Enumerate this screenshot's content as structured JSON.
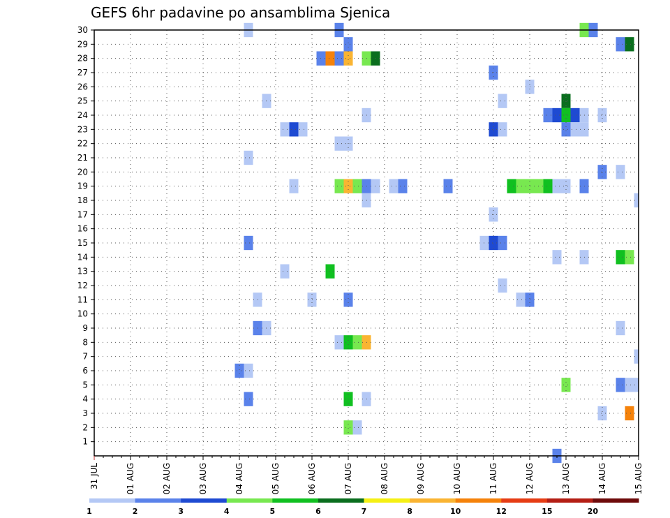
{
  "chart_data": {
    "type": "heatmap",
    "title": "GEFS 6hr padavine po ansamblima Sjenica",
    "xlabel": "",
    "ylabel": "",
    "x_ticks": [
      "31 JUL",
      "01 AUG",
      "02 AUG",
      "03 AUG",
      "04 AUG",
      "05 AUG",
      "06 AUG",
      "07 AUG",
      "08 AUG",
      "09 AUG",
      "10 AUG",
      "11 AUG",
      "12 AUG",
      "13 AUG",
      "14 AUG",
      "15 AUG"
    ],
    "x_range_days": [
      0,
      15
    ],
    "y_ticks": [
      "1",
      "2",
      "3",
      "4",
      "5",
      "6",
      "7",
      "8",
      "9",
      "10",
      "11",
      "12",
      "13",
      "14",
      "15",
      "16",
      "17",
      "18",
      "19",
      "20",
      "21",
      "22",
      "23",
      "24",
      "25",
      "26",
      "27",
      "28",
      "29",
      "30"
    ],
    "y_range": [
      0,
      30
    ],
    "grid": true,
    "colorbar": {
      "labels": [
        "1",
        "2",
        "3",
        "4",
        "5",
        "6",
        "7",
        "8",
        "10",
        "12",
        "15",
        "20"
      ],
      "colors": [
        "#b4c8f5",
        "#5a82ea",
        "#1e4ad2",
        "#78e850",
        "#10c020",
        "#0a6e1e",
        "#f5f014",
        "#fab432",
        "#f5820a",
        "#e63c14",
        "#b41e14",
        "#6e0a0a"
      ]
    },
    "cells": [
      {
        "d": 4.25,
        "m": 30,
        "c": 0
      },
      {
        "d": 6.75,
        "m": 30,
        "c": 1
      },
      {
        "d": 13.5,
        "m": 30,
        "c": 3
      },
      {
        "d": 13.75,
        "m": 30,
        "c": 1
      },
      {
        "d": 7.0,
        "m": 29,
        "c": 1
      },
      {
        "d": 14.5,
        "m": 29,
        "c": 1
      },
      {
        "d": 14.75,
        "m": 29,
        "c": 5
      },
      {
        "d": 6.25,
        "m": 28,
        "c": 1
      },
      {
        "d": 6.5,
        "m": 28,
        "c": 8
      },
      {
        "d": 6.75,
        "m": 28,
        "c": 1
      },
      {
        "d": 7.0,
        "m": 28,
        "c": 7
      },
      {
        "d": 7.5,
        "m": 28,
        "c": 3
      },
      {
        "d": 7.75,
        "m": 28,
        "c": 5
      },
      {
        "d": 11.0,
        "m": 27,
        "c": 1
      },
      {
        "d": 12.0,
        "m": 26,
        "c": 0
      },
      {
        "d": 4.75,
        "m": 25,
        "c": 0
      },
      {
        "d": 11.25,
        "m": 25,
        "c": 0
      },
      {
        "d": 13.0,
        "m": 25,
        "c": 5
      },
      {
        "d": 7.5,
        "m": 24,
        "c": 0
      },
      {
        "d": 12.5,
        "m": 24,
        "c": 1
      },
      {
        "d": 12.75,
        "m": 24,
        "c": 2
      },
      {
        "d": 13.0,
        "m": 24,
        "c": 4
      },
      {
        "d": 13.25,
        "m": 24,
        "c": 2
      },
      {
        "d": 13.5,
        "m": 24,
        "c": 0
      },
      {
        "d": 14.0,
        "m": 24,
        "c": 0
      },
      {
        "d": 5.25,
        "m": 23,
        "c": 0
      },
      {
        "d": 5.5,
        "m": 23,
        "c": 2
      },
      {
        "d": 5.75,
        "m": 23,
        "c": 0
      },
      {
        "d": 11.0,
        "m": 23,
        "c": 2
      },
      {
        "d": 11.25,
        "m": 23,
        "c": 0
      },
      {
        "d": 13.0,
        "m": 23,
        "c": 1
      },
      {
        "d": 13.25,
        "m": 23,
        "c": 0
      },
      {
        "d": 13.5,
        "m": 23,
        "c": 0
      },
      {
        "d": 6.75,
        "m": 22,
        "c": 0
      },
      {
        "d": 7.0,
        "m": 22,
        "c": 0
      },
      {
        "d": 4.25,
        "m": 21,
        "c": 0
      },
      {
        "d": 14.0,
        "m": 20,
        "c": 1
      },
      {
        "d": 14.5,
        "m": 20,
        "c": 0
      },
      {
        "d": 5.5,
        "m": 19,
        "c": 0
      },
      {
        "d": 6.75,
        "m": 19,
        "c": 3
      },
      {
        "d": 7.0,
        "m": 19,
        "c": 7
      },
      {
        "d": 7.25,
        "m": 19,
        "c": 3
      },
      {
        "d": 7.5,
        "m": 19,
        "c": 1
      },
      {
        "d": 7.75,
        "m": 19,
        "c": 0
      },
      {
        "d": 8.25,
        "m": 19,
        "c": 0
      },
      {
        "d": 8.5,
        "m": 19,
        "c": 1
      },
      {
        "d": 9.75,
        "m": 19,
        "c": 1
      },
      {
        "d": 11.5,
        "m": 19,
        "c": 4
      },
      {
        "d": 11.75,
        "m": 19,
        "c": 3
      },
      {
        "d": 12.0,
        "m": 19,
        "c": 3
      },
      {
        "d": 12.25,
        "m": 19,
        "c": 3
      },
      {
        "d": 12.5,
        "m": 19,
        "c": 4
      },
      {
        "d": 12.75,
        "m": 19,
        "c": 0
      },
      {
        "d": 13.0,
        "m": 19,
        "c": 0
      },
      {
        "d": 13.5,
        "m": 19,
        "c": 1
      },
      {
        "d": 7.5,
        "m": 18,
        "c": 0
      },
      {
        "d": 15.0,
        "m": 18,
        "c": 0
      },
      {
        "d": 11.0,
        "m": 17,
        "c": 0
      },
      {
        "d": 4.25,
        "m": 15,
        "c": 1
      },
      {
        "d": 10.75,
        "m": 15,
        "c": 0
      },
      {
        "d": 11.0,
        "m": 15,
        "c": 2
      },
      {
        "d": 11.25,
        "m": 15,
        "c": 1
      },
      {
        "d": 12.75,
        "m": 14,
        "c": 0
      },
      {
        "d": 13.5,
        "m": 14,
        "c": 0
      },
      {
        "d": 14.5,
        "m": 14,
        "c": 4
      },
      {
        "d": 14.75,
        "m": 14,
        "c": 3
      },
      {
        "d": 5.25,
        "m": 13,
        "c": 0
      },
      {
        "d": 6.5,
        "m": 13,
        "c": 4
      },
      {
        "d": 11.25,
        "m": 12,
        "c": 0
      },
      {
        "d": 4.5,
        "m": 11,
        "c": 0
      },
      {
        "d": 6.0,
        "m": 11,
        "c": 0
      },
      {
        "d": 7.0,
        "m": 11,
        "c": 1
      },
      {
        "d": 11.75,
        "m": 11,
        "c": 0
      },
      {
        "d": 12.0,
        "m": 11,
        "c": 1
      },
      {
        "d": 4.5,
        "m": 9,
        "c": 1
      },
      {
        "d": 4.75,
        "m": 9,
        "c": 0
      },
      {
        "d": 14.5,
        "m": 9,
        "c": 0
      },
      {
        "d": 6.75,
        "m": 8,
        "c": 0
      },
      {
        "d": 7.0,
        "m": 8,
        "c": 4
      },
      {
        "d": 7.25,
        "m": 8,
        "c": 3
      },
      {
        "d": 7.5,
        "m": 8,
        "c": 7
      },
      {
        "d": 15.0,
        "m": 7,
        "c": 0
      },
      {
        "d": 4.0,
        "m": 6,
        "c": 1
      },
      {
        "d": 4.25,
        "m": 6,
        "c": 0
      },
      {
        "d": 13.0,
        "m": 5,
        "c": 3
      },
      {
        "d": 14.5,
        "m": 5,
        "c": 1
      },
      {
        "d": 14.75,
        "m": 5,
        "c": 0
      },
      {
        "d": 15.0,
        "m": 5,
        "c": 0
      },
      {
        "d": 4.25,
        "m": 4,
        "c": 1
      },
      {
        "d": 7.0,
        "m": 4,
        "c": 4
      },
      {
        "d": 7.5,
        "m": 4,
        "c": 0
      },
      {
        "d": 14.0,
        "m": 3,
        "c": 0
      },
      {
        "d": 14.75,
        "m": 3,
        "c": 8
      },
      {
        "d": 7.0,
        "m": 2,
        "c": 3
      },
      {
        "d": 7.25,
        "m": 2,
        "c": 0
      },
      {
        "d": 12.75,
        "m": 0,
        "c": 1
      }
    ]
  }
}
